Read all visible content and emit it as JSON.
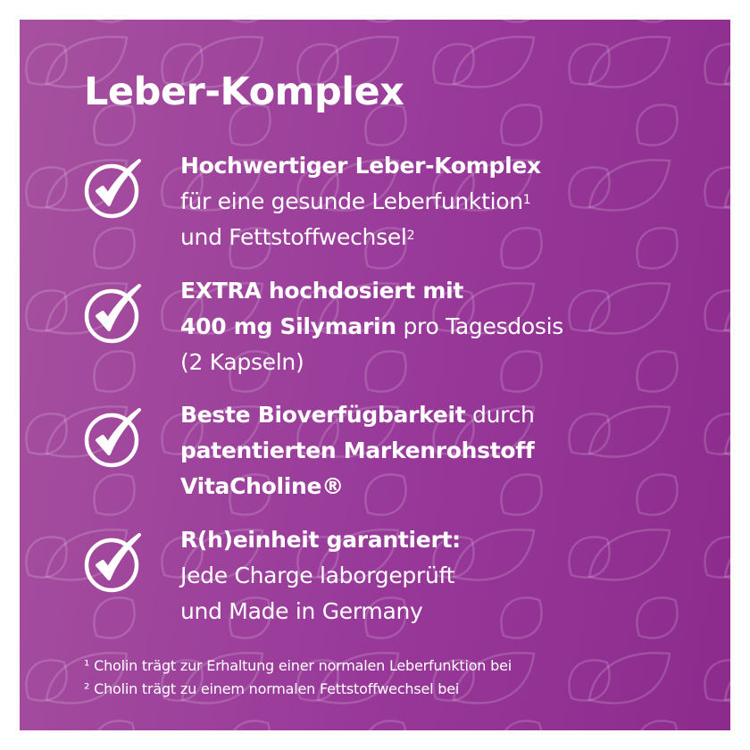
{
  "title": "Leber-Komplex",
  "colors": {
    "background_left": "#a6519f",
    "background_right": "#8c2b8c",
    "text": "#ffffff",
    "border": "#ffffff"
  },
  "icons": {
    "bullet": "check-circle-icon",
    "background": "leaf-outline-pattern"
  },
  "features": [
    {
      "lines": [
        [
          {
            "t": "Hochwertiger Leber-Komplex",
            "b": true
          }
        ],
        [
          {
            "t": "für eine gesunde Leberfunktion",
            "b": false
          },
          {
            "t": "1",
            "sup": true
          }
        ],
        [
          {
            "t": "und Fettstoffwechsel",
            "b": false
          },
          {
            "t": "2",
            "sup": true
          }
        ]
      ]
    },
    {
      "lines": [
        [
          {
            "t": "EXTRA hochdosiert mit",
            "b": true
          }
        ],
        [
          {
            "t": "400 mg Silymarin",
            "b": true
          },
          {
            "t": " pro Tagesdosis",
            "b": false
          }
        ],
        [
          {
            "t": "(2 Kapseln)",
            "b": false
          }
        ]
      ]
    },
    {
      "lines": [
        [
          {
            "t": "Beste Bioverfügbarkeit",
            "b": true
          },
          {
            "t": " durch",
            "b": false
          }
        ],
        [
          {
            "t": "patentierten Markenrohstoff",
            "b": true
          }
        ],
        [
          {
            "t": "VitaCholine®",
            "b": true
          }
        ]
      ]
    },
    {
      "lines": [
        [
          {
            "t": "R(h)einheit garantiert:",
            "b": true
          }
        ],
        [
          {
            "t": "Jede Charge laborgeprüft",
            "b": false
          }
        ],
        [
          {
            "t": "und Made in Germany",
            "b": false
          }
        ]
      ]
    }
  ],
  "footnotes": [
    "¹ Cholin trägt zur Erhaltung einer normalen Leberfunktion bei",
    "² Cholin trägt zu einem normalen Fettstoffwechsel bei"
  ]
}
